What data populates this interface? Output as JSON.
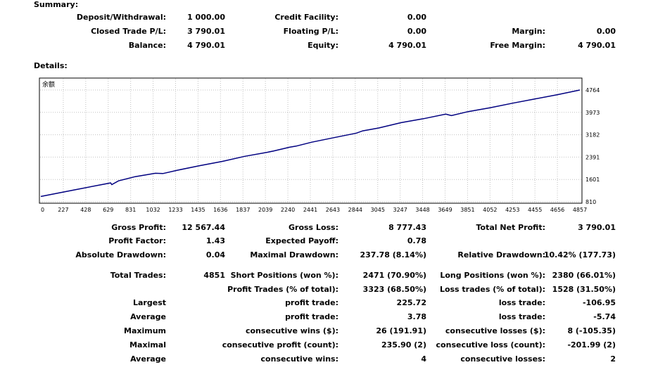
{
  "summary_title": "Summary:",
  "summary": {
    "deposit_label": "Deposit/Withdrawal:",
    "deposit_value": "1 000.00",
    "credit_label": "Credit Facility:",
    "credit_value": "0.00",
    "closed_label": "Closed Trade P/L:",
    "closed_value": "3 790.01",
    "floating_label": "Floating P/L:",
    "floating_value": "0.00",
    "margin_label": "Margin:",
    "margin_value": "0.00",
    "balance_label": "Balance:",
    "balance_value": "4 790.01",
    "equity_label": "Equity:",
    "equity_value": "4 790.01",
    "free_margin_label": "Free Margin:",
    "free_margin_value": "4 790.01"
  },
  "details_title": "Details:",
  "chart_data": {
    "type": "line",
    "title": "余额",
    "x_ticks": [
      "0",
      "227",
      "428",
      "629",
      "831",
      "1032",
      "1233",
      "1435",
      "1636",
      "1837",
      "2039",
      "2240",
      "2441",
      "2643",
      "2844",
      "3045",
      "3247",
      "3448",
      "3649",
      "3851",
      "4052",
      "4253",
      "4455",
      "4656",
      "4857"
    ],
    "y_ticks": [
      "4764",
      "3973",
      "3182",
      "2391",
      "1601",
      "810"
    ],
    "xlim": [
      0,
      4857
    ],
    "ylim": [
      810,
      4764
    ],
    "color": "#000080",
    "grid": true,
    "series": [
      {
        "x": [
          0,
          300,
          629,
          640,
          700,
          850,
          1032,
          1100,
          1233,
          1435,
          1636,
          1837,
          2039,
          2100,
          2240,
          2300,
          2441,
          2643,
          2844,
          2900,
          3045,
          3247,
          3448,
          3649,
          3700,
          3851,
          4052,
          4253,
          4455,
          4656,
          4857
        ],
        "y": [
          1000,
          1230,
          1480,
          1420,
          1550,
          1700,
          1820,
          1810,
          1930,
          2090,
          2240,
          2420,
          2560,
          2610,
          2740,
          2780,
          2920,
          3080,
          3240,
          3320,
          3420,
          3610,
          3750,
          3910,
          3860,
          4000,
          4140,
          4300,
          4450,
          4600,
          4764
        ]
      }
    ]
  },
  "stats": {
    "gross_profit_label": "Gross Profit:",
    "gross_profit_value": "12 567.44",
    "gross_loss_label": "Gross Loss:",
    "gross_loss_value": "8 777.43",
    "net_profit_label": "Total Net Profit:",
    "net_profit_value": "3 790.01",
    "profit_factor_label": "Profit Factor:",
    "profit_factor_value": "1.43",
    "expected_payoff_label": "Expected Payoff:",
    "expected_payoff_value": "0.78",
    "abs_dd_label": "Absolute Drawdown:",
    "abs_dd_value": "0.04",
    "max_dd_label": "Maximal Drawdown:",
    "max_dd_value": "237.78 (8.14%)",
    "rel_dd_label": "Relative Drawdown:",
    "rel_dd_value": "10.42% (177.73)",
    "total_trades_label": "Total Trades:",
    "total_trades_value": "4851",
    "short_label": "Short Positions (won %):",
    "short_value": "2471 (70.90%)",
    "long_label": "Long Positions (won %):",
    "long_value": "2380 (66.01%)",
    "profit_trades_label": "Profit Trades (% of total):",
    "profit_trades_value": "3323 (68.50%)",
    "loss_trades_label": "Loss trades (% of total):",
    "loss_trades_value": "1528 (31.50%)",
    "largest_label": "Largest",
    "largest_profit_label": "profit trade:",
    "largest_profit_value": "225.72",
    "largest_loss_label": "loss trade:",
    "largest_loss_value": "-106.95",
    "average_label": "Average",
    "average_profit_label": "profit trade:",
    "average_profit_value": "3.78",
    "average_loss_label": "loss trade:",
    "average_loss_value": "-5.74",
    "maximum_label": "Maximum",
    "max_wins_label": "consecutive wins ($):",
    "max_wins_value": "26 (191.91)",
    "max_losses_label": "consecutive losses ($):",
    "max_losses_value": "8 (-105.35)",
    "maximal_label": "Maximal",
    "maximal_profit_label": "consecutive profit (count):",
    "maximal_profit_value": "235.90 (2)",
    "maximal_loss_label": "consecutive loss (count):",
    "maximal_loss_value": "-201.99 (2)",
    "avg_cons_label": "Average",
    "avg_cons_wins_label": "consecutive wins:",
    "avg_cons_wins_value": "4",
    "avg_cons_losses_label": "consecutive losses:",
    "avg_cons_losses_value": "2"
  }
}
